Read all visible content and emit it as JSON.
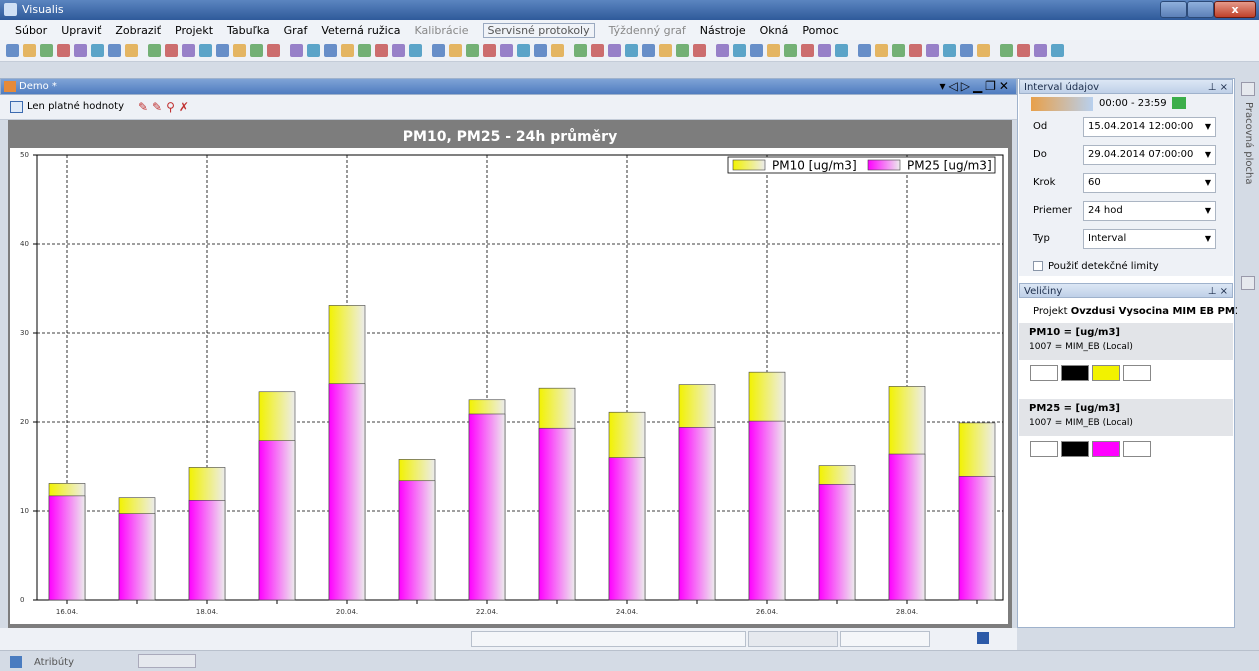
{
  "window": {
    "title": "Visualis"
  },
  "menu": [
    "Súbor",
    "Upraviť",
    "Zobraziť",
    "Projekt",
    "Tabuľka",
    "Graf",
    "Veterná ružica",
    "Kalibrácie",
    "Servisné protokoly",
    "Týždenný graf",
    "Nástroje",
    "Okná",
    "Pomoc"
  ],
  "document": {
    "title": "Demo *",
    "toolbar_label": "Len platné hodnoty"
  },
  "interval_panel": {
    "title": "Interval údajov",
    "time_range": "00:00 - 23:59",
    "fields": [
      {
        "label": "Od",
        "value": "15.04.2014 12:00:00"
      },
      {
        "label": "Do",
        "value": "29.04.2014 07:00:00"
      },
      {
        "label": "Krok",
        "value": "60"
      },
      {
        "label": "Priemer",
        "value": "24 hod"
      },
      {
        "label": "Typ",
        "value": "Interval"
      }
    ],
    "checkbox": "Použiť detekčné limity"
  },
  "quantities_panel": {
    "title": "Veličiny",
    "project_label": "Projekt",
    "project": "Ovzdusi Vysocina MIM EB PM1",
    "items": [
      {
        "name": "PM10 =  [ug/m3]",
        "source": "1007 = MIM_EB  (Local)"
      },
      {
        "name": "PM25 =  [ug/m3]",
        "source": "1007 = MIM_EB  (Local)"
      }
    ]
  },
  "side_tab": "Pracovná plocha",
  "bottom_tab": "Atribúty",
  "chart_data": {
    "type": "bar",
    "title": "PM10, PM25 - 24h průměry",
    "categories": [
      "16.04.",
      null,
      "18.04.",
      null,
      "20.04.",
      null,
      "22.04.",
      null,
      "24.04.",
      null,
      "26.04.",
      null,
      "28.04.",
      null
    ],
    "series": [
      {
        "name": "PM10 [ug/m3]",
        "color": "#f2f200",
        "values": [
          13.1,
          11.5,
          14.9,
          23.4,
          33.1,
          15.8,
          22.5,
          23.8,
          21.1,
          24.2,
          25.6,
          15.1,
          24.0,
          19.9
        ]
      },
      {
        "name": "PM25 [ug/m3]",
        "color": "#ff00ff",
        "values": [
          11.7,
          9.7,
          11.2,
          17.9,
          24.3,
          13.4,
          20.9,
          19.3,
          16.0,
          19.4,
          20.1,
          13.0,
          16.4,
          13.9
        ]
      }
    ],
    "ylim": [
      0,
      50
    ],
    "yticks": [
      0,
      10,
      20,
      30,
      40,
      50
    ],
    "grid": true,
    "legend": "top-right"
  }
}
